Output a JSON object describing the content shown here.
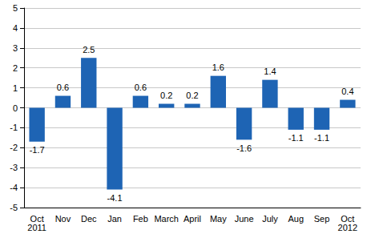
{
  "chart_data": {
    "type": "bar",
    "categories": [
      "Oct\n2011",
      "Nov",
      "Dec",
      "Jan",
      "Feb",
      "March",
      "April",
      "May",
      "June",
      "July",
      "Aug",
      "Sep",
      "Oct\n2012"
    ],
    "values": [
      -1.7,
      0.6,
      2.5,
      -4.1,
      0.6,
      0.2,
      0.2,
      1.6,
      -1.6,
      1.4,
      -1.1,
      -1.1,
      0.4
    ],
    "color": "#1e64b4",
    "ylim": [
      -5,
      5
    ],
    "yticks": [
      -5,
      -4,
      -3,
      -2,
      -1,
      0,
      1,
      2,
      3,
      4,
      5
    ],
    "grid": true,
    "data_labels": true
  }
}
